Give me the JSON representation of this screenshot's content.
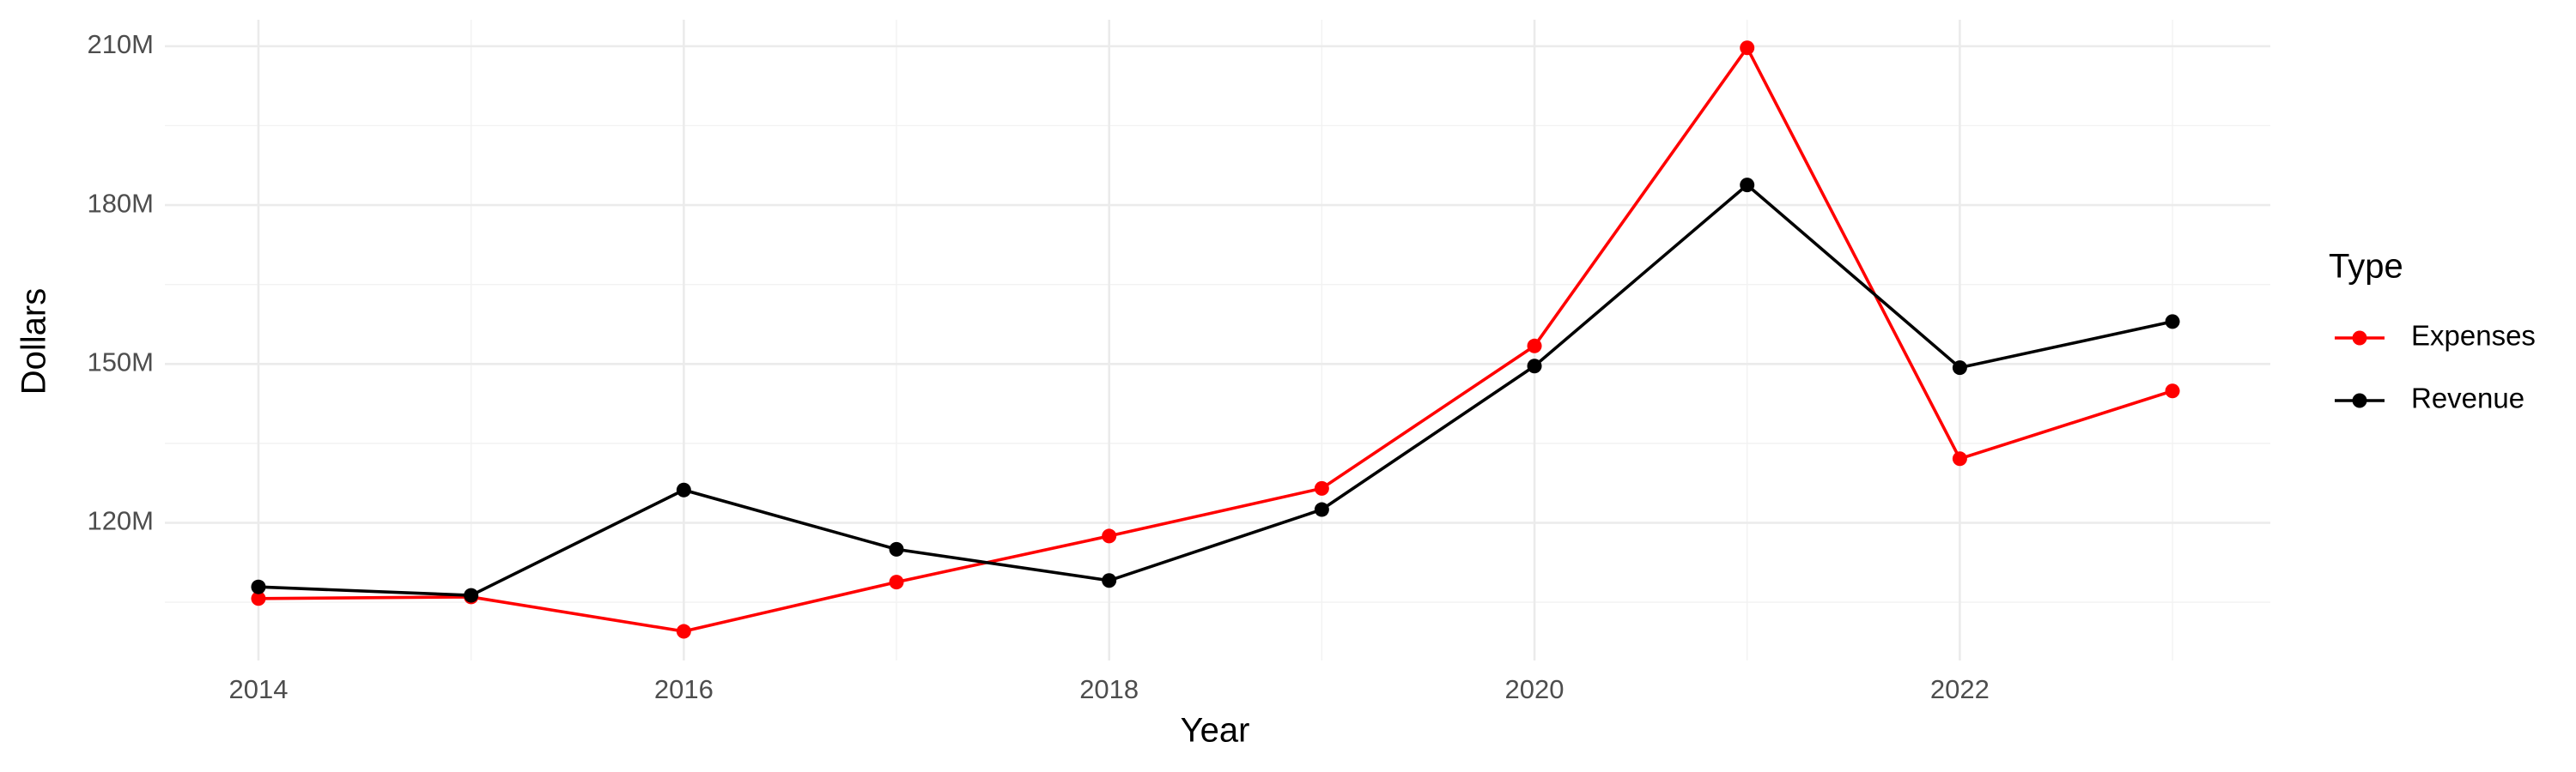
{
  "chart_data": {
    "type": "line",
    "x_label": "Year",
    "y_label": "Dollars",
    "legend_title": "Type",
    "legend_position": "right",
    "grid": true,
    "x": [
      2014,
      2015,
      2016,
      2017,
      2018,
      2019,
      2020,
      2021,
      2022,
      2023
    ],
    "series": [
      {
        "name": "Expenses",
        "color": "#ff0000",
        "values": [
          105700000,
          106000000,
          99500000,
          108800000,
          117500000,
          126500000,
          153400000,
          209700000,
          132100000,
          144900000
        ]
      },
      {
        "name": "Revenue",
        "color": "#000000",
        "values": [
          107900000,
          106300000,
          126200000,
          115000000,
          109100000,
          122500000,
          149600000,
          183800000,
          149300000,
          158000000
        ]
      }
    ],
    "xlim": [
      2013.56,
      2023.46
    ],
    "xticks": [
      2014,
      2016,
      2018,
      2020,
      2022
    ],
    "ylim": [
      94000000,
      215000000
    ],
    "yticks": [
      {
        "value": 120000000,
        "label": "120M"
      },
      {
        "value": 150000000,
        "label": "150M"
      },
      {
        "value": 180000000,
        "label": "180M"
      },
      {
        "value": 210000000,
        "label": "210M"
      }
    ]
  }
}
